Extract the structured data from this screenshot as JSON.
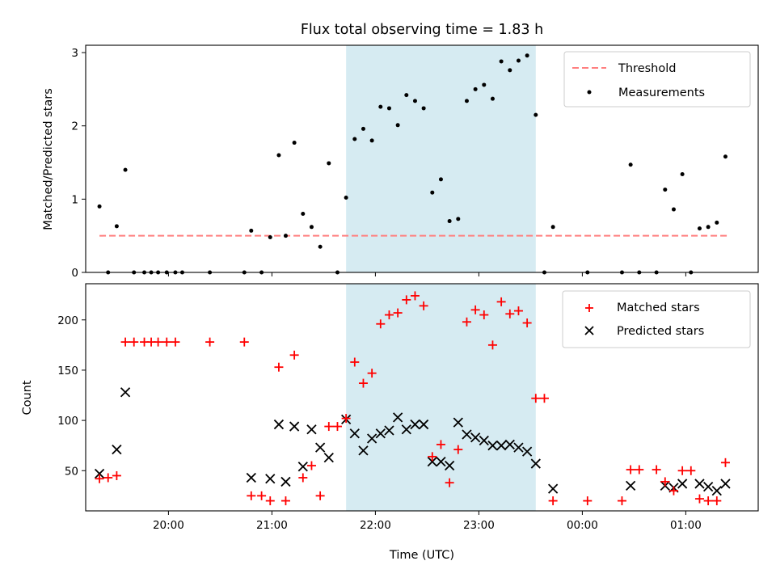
{
  "chart_data": [
    {
      "type": "scatter",
      "title": "Flux total observing time = 1.83 h",
      "xlabel": "",
      "ylabel": "Matched/Predicted stars",
      "ylim": [
        0,
        3.1
      ],
      "yticks": [
        "0",
        "1",
        "2",
        "3"
      ],
      "xlim": [
        "19:12",
        "01:42"
      ],
      "shaded_window": [
        "21:43",
        "23:33"
      ],
      "threshold": {
        "name": "Threshold",
        "value": 0.5,
        "x_range": [
          "19:20",
          "01:25"
        ],
        "color": "#ff7f7f",
        "style": "dashed"
      },
      "series": [
        {
          "name": "Measurements",
          "color": "#000000",
          "marker": "dot",
          "points": [
            [
              "19:20",
              0.9
            ],
            [
              "19:25",
              0.0
            ],
            [
              "19:30",
              0.63
            ],
            [
              "19:35",
              1.4
            ],
            [
              "19:40",
              0.0
            ],
            [
              "19:46",
              0.0
            ],
            [
              "19:50",
              0.0
            ],
            [
              "19:54",
              0.0
            ],
            [
              "19:59",
              0.0
            ],
            [
              "20:04",
              0.0
            ],
            [
              "20:08",
              0.0
            ],
            [
              "20:24",
              0.0
            ],
            [
              "20:44",
              0.0
            ],
            [
              "20:48",
              0.57
            ],
            [
              "20:54",
              0.0
            ],
            [
              "20:59",
              0.48
            ],
            [
              "21:04",
              1.6
            ],
            [
              "21:08",
              0.5
            ],
            [
              "21:13",
              1.77
            ],
            [
              "21:18",
              0.8
            ],
            [
              "21:23",
              0.62
            ],
            [
              "21:28",
              0.35
            ],
            [
              "21:33",
              1.49
            ],
            [
              "21:38",
              0.0
            ],
            [
              "21:43",
              1.02
            ],
            [
              "21:48",
              1.82
            ],
            [
              "21:53",
              1.96
            ],
            [
              "21:58",
              1.8
            ],
            [
              "22:03",
              2.26
            ],
            [
              "22:08",
              2.24
            ],
            [
              "22:13",
              2.01
            ],
            [
              "22:18",
              2.42
            ],
            [
              "22:23",
              2.34
            ],
            [
              "22:28",
              2.24
            ],
            [
              "22:33",
              1.09
            ],
            [
              "22:38",
              1.27
            ],
            [
              "22:43",
              0.7
            ],
            [
              "22:48",
              0.73
            ],
            [
              "22:53",
              2.34
            ],
            [
              "22:58",
              2.5
            ],
            [
              "23:03",
              2.56
            ],
            [
              "23:08",
              2.37
            ],
            [
              "23:13",
              2.88
            ],
            [
              "23:18",
              2.76
            ],
            [
              "23:23",
              2.89
            ],
            [
              "23:28",
              2.96
            ],
            [
              "23:33",
              2.15
            ],
            [
              "23:38",
              0.0
            ],
            [
              "23:43",
              0.62
            ],
            [
              "00:03",
              0.0
            ],
            [
              "00:23",
              0.0
            ],
            [
              "00:28",
              1.47
            ],
            [
              "00:33",
              0.0
            ],
            [
              "00:43",
              0.0
            ],
            [
              "00:48",
              1.13
            ],
            [
              "00:53",
              0.86
            ],
            [
              "00:58",
              1.34
            ],
            [
              "01:03",
              0.0
            ],
            [
              "01:08",
              0.6
            ],
            [
              "01:13",
              0.62
            ],
            [
              "01:18",
              0.68
            ],
            [
              "01:23",
              1.58
            ]
          ]
        }
      ],
      "legend_position": "top-right"
    },
    {
      "type": "scatter",
      "title": "",
      "xlabel": "Time (UTC)",
      "ylabel": "Count",
      "ylim": [
        10,
        236
      ],
      "yticks": [
        "50",
        "100",
        "150",
        "200"
      ],
      "xticks": [
        "20:00",
        "21:00",
        "22:00",
        "23:00",
        "00:00",
        "01:00"
      ],
      "xlim": [
        "19:12",
        "01:42"
      ],
      "shaded_window": [
        "21:43",
        "23:33"
      ],
      "series": [
        {
          "name": "Matched stars",
          "color": "#ff0000",
          "marker": "plus",
          "points": [
            [
              "19:20",
              42
            ],
            [
              "19:25",
              43
            ],
            [
              "19:30",
              45
            ],
            [
              "19:35",
              178
            ],
            [
              "19:40",
              178
            ],
            [
              "19:46",
              178
            ],
            [
              "19:50",
              178
            ],
            [
              "19:54",
              178
            ],
            [
              "19:59",
              178
            ],
            [
              "20:04",
              178
            ],
            [
              "20:24",
              178
            ],
            [
              "20:44",
              178
            ],
            [
              "20:48",
              25
            ],
            [
              "20:54",
              25
            ],
            [
              "20:59",
              20
            ],
            [
              "21:04",
              153
            ],
            [
              "21:08",
              20
            ],
            [
              "21:13",
              165
            ],
            [
              "21:18",
              43
            ],
            [
              "21:23",
              55
            ],
            [
              "21:28",
              25
            ],
            [
              "21:33",
              94
            ],
            [
              "21:38",
              94
            ],
            [
              "21:43",
              102
            ],
            [
              "21:48",
              158
            ],
            [
              "21:53",
              137
            ],
            [
              "21:58",
              147
            ],
            [
              "22:03",
              196
            ],
            [
              "22:08",
              205
            ],
            [
              "22:13",
              207
            ],
            [
              "22:18",
              220
            ],
            [
              "22:23",
              224
            ],
            [
              "22:28",
              214
            ],
            [
              "22:33",
              64
            ],
            [
              "22:38",
              76
            ],
            [
              "22:43",
              38
            ],
            [
              "22:48",
              71
            ],
            [
              "22:53",
              198
            ],
            [
              "22:58",
              210
            ],
            [
              "23:03",
              205
            ],
            [
              "23:08",
              175
            ],
            [
              "23:13",
              218
            ],
            [
              "23:18",
              206
            ],
            [
              "23:23",
              209
            ],
            [
              "23:28",
              197
            ],
            [
              "23:33",
              122
            ],
            [
              "23:38",
              122
            ],
            [
              "23:43",
              20
            ],
            [
              "00:03",
              20
            ],
            [
              "00:23",
              20
            ],
            [
              "00:28",
              51
            ],
            [
              "00:33",
              51
            ],
            [
              "00:43",
              51
            ],
            [
              "00:48",
              39
            ],
            [
              "00:53",
              30
            ],
            [
              "00:58",
              50
            ],
            [
              "01:03",
              50
            ],
            [
              "01:08",
              22
            ],
            [
              "01:13",
              20
            ],
            [
              "01:18",
              20
            ],
            [
              "01:23",
              58
            ]
          ]
        },
        {
          "name": "Predicted stars",
          "color": "#000000",
          "marker": "x",
          "points": [
            [
              "19:20",
              47
            ],
            [
              "19:30",
              71
            ],
            [
              "19:35",
              128
            ],
            [
              "20:48",
              43
            ],
            [
              "20:59",
              42
            ],
            [
              "21:04",
              96
            ],
            [
              "21:08",
              39
            ],
            [
              "21:13",
              94
            ],
            [
              "21:18",
              54
            ],
            [
              "21:23",
              91
            ],
            [
              "21:28",
              73
            ],
            [
              "21:33",
              63
            ],
            [
              "21:43",
              101
            ],
            [
              "21:48",
              87
            ],
            [
              "21:53",
              70
            ],
            [
              "21:58",
              82
            ],
            [
              "22:03",
              87
            ],
            [
              "22:08",
              90
            ],
            [
              "22:13",
              103
            ],
            [
              "22:18",
              91
            ],
            [
              "22:23",
              96
            ],
            [
              "22:28",
              96
            ],
            [
              "22:33",
              59
            ],
            [
              "22:38",
              59
            ],
            [
              "22:43",
              55
            ],
            [
              "22:48",
              98
            ],
            [
              "22:53",
              86
            ],
            [
              "22:58",
              83
            ],
            [
              "23:03",
              80
            ],
            [
              "23:08",
              75
            ],
            [
              "23:13",
              75
            ],
            [
              "23:18",
              76
            ],
            [
              "23:23",
              73
            ],
            [
              "23:28",
              69
            ],
            [
              "23:33",
              57
            ],
            [
              "23:43",
              32
            ],
            [
              "00:28",
              35
            ],
            [
              "00:48",
              35
            ],
            [
              "00:53",
              33
            ],
            [
              "00:58",
              37
            ],
            [
              "01:08",
              37
            ],
            [
              "01:13",
              34
            ],
            [
              "01:18",
              30
            ],
            [
              "01:23",
              37
            ]
          ]
        }
      ],
      "legend_position": "top-right"
    }
  ],
  "colors": {
    "shade": "#add8e6",
    "threshold": "#ff7f7f",
    "matched": "#ff0000",
    "predicted": "#000000",
    "measurements": "#000000"
  }
}
